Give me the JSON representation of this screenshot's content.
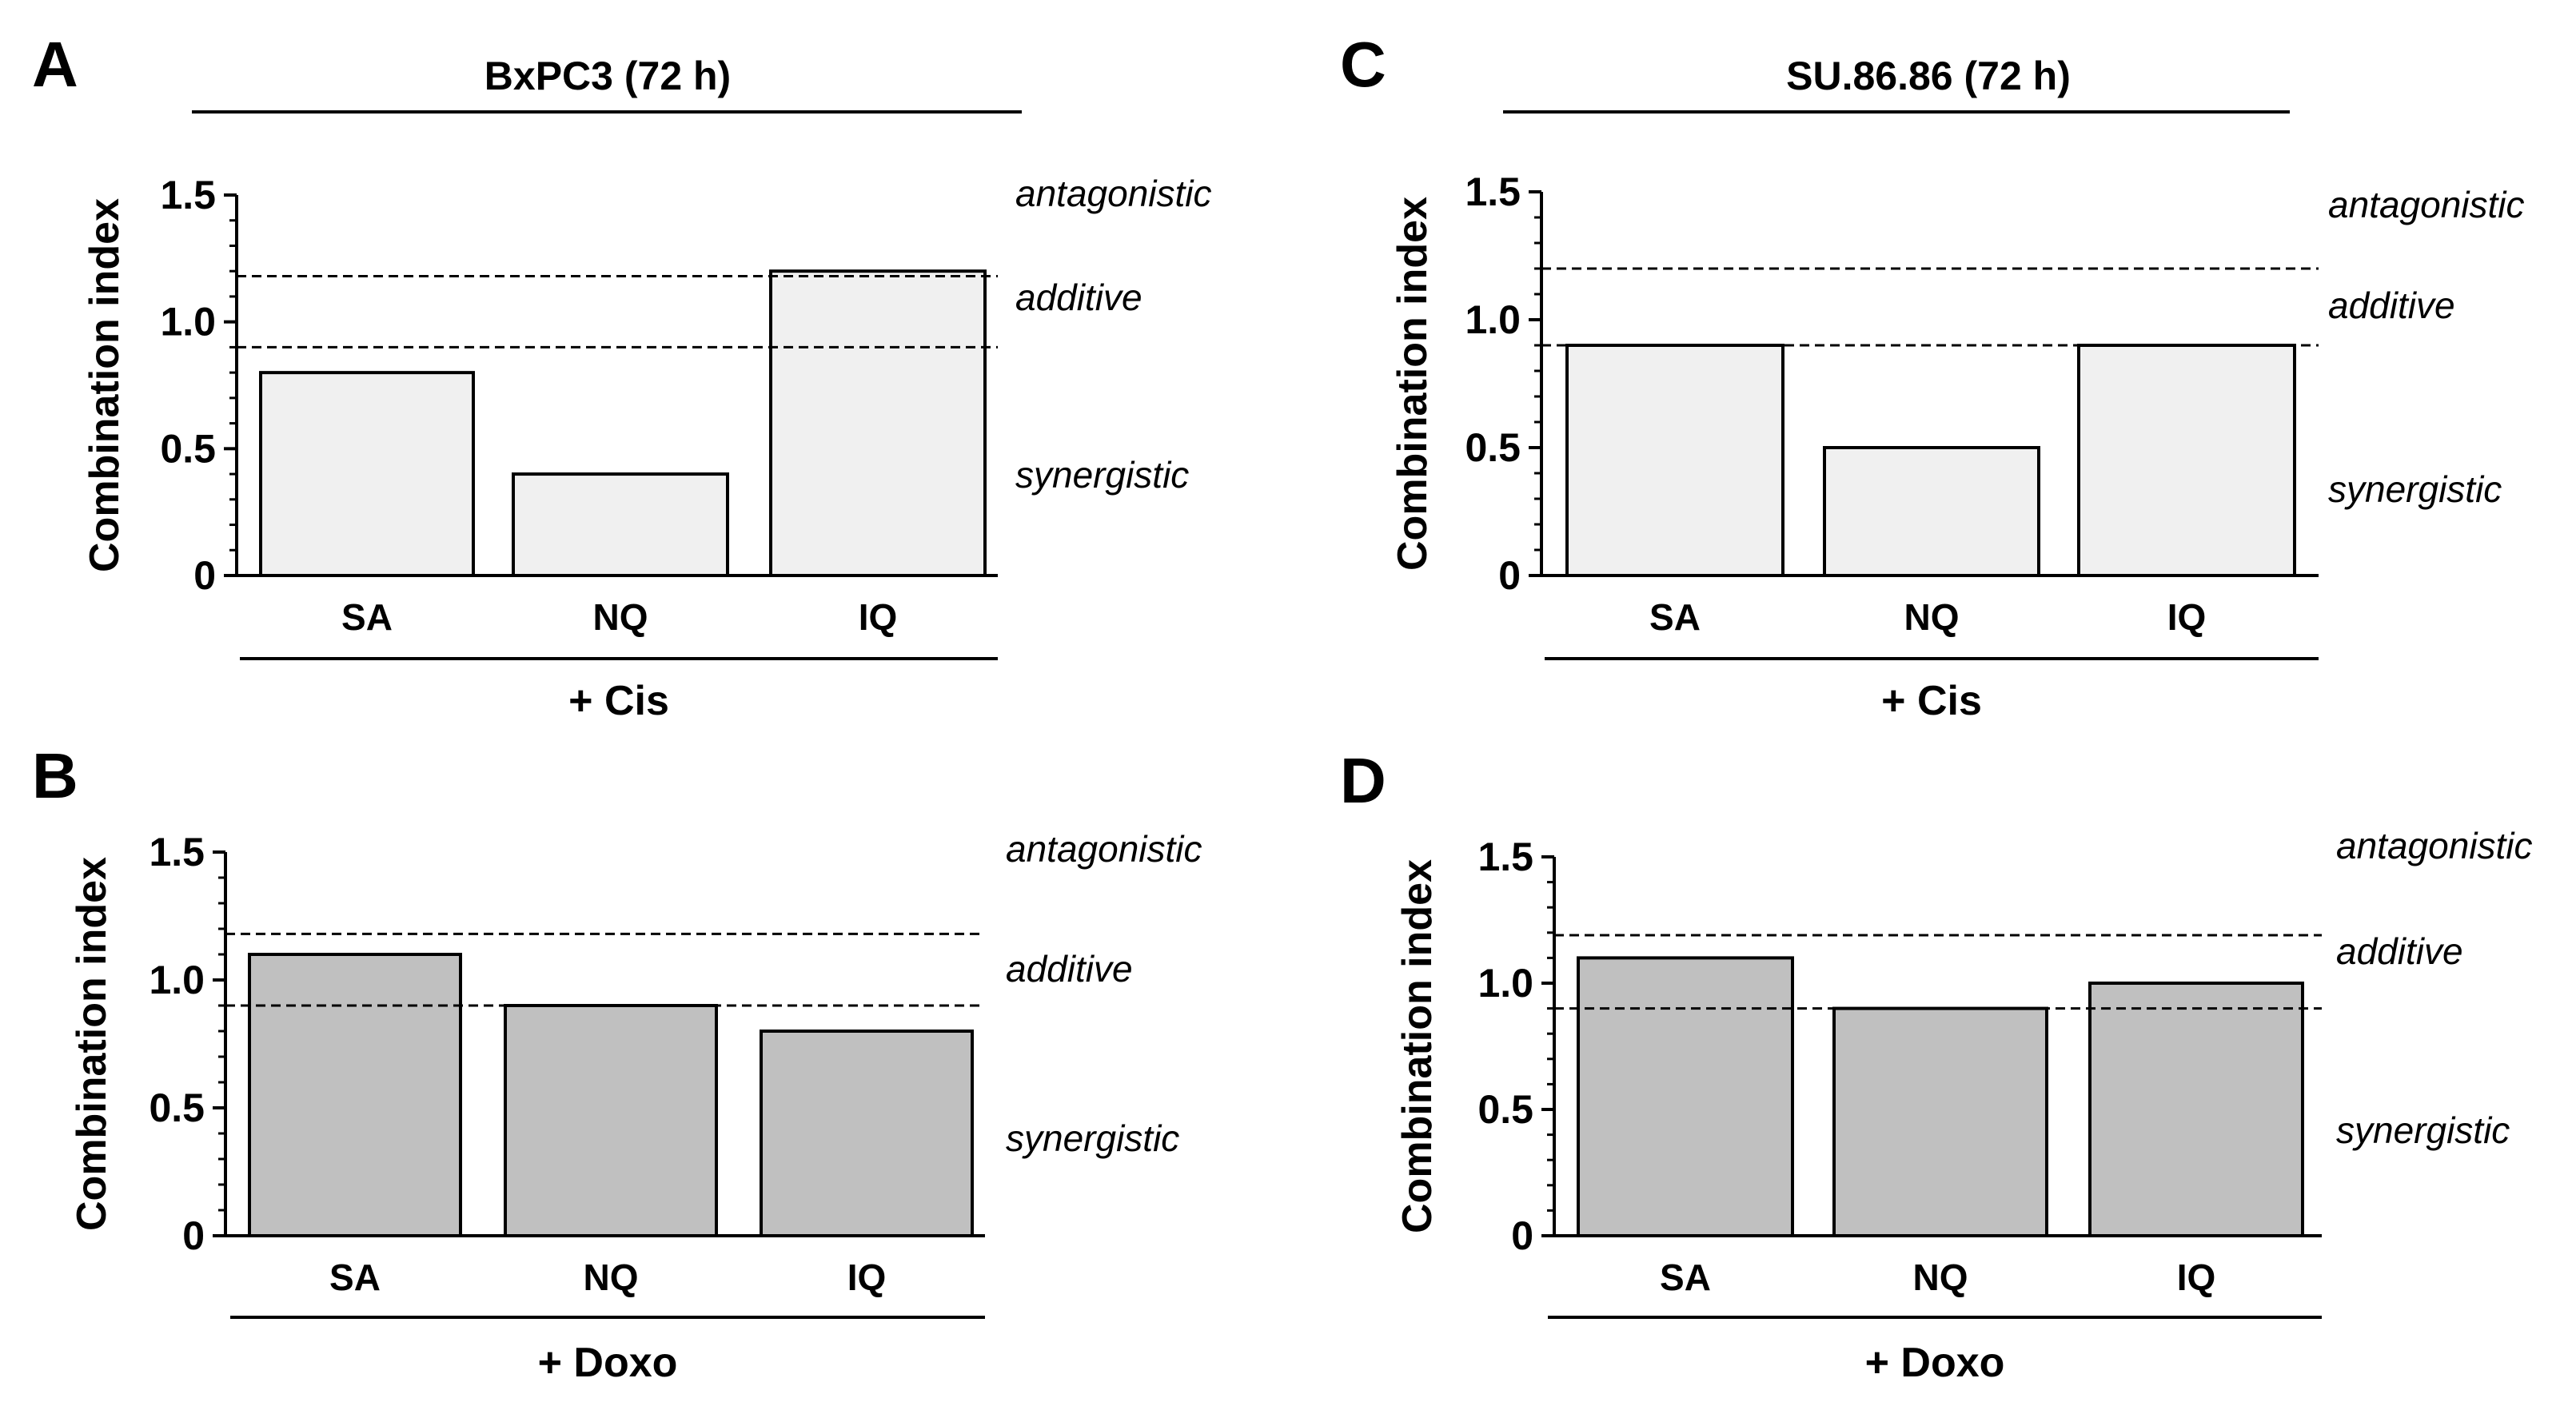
{
  "chart_data": [
    {
      "panel": "A",
      "type": "bar",
      "title": "BxPC3 (72 h)",
      "ylabel": "Combination index",
      "group_label": "+ Cis",
      "categories": [
        "SA",
        "NQ",
        "IQ"
      ],
      "values": [
        0.8,
        0.4,
        1.2
      ],
      "bar_color": "#f0f0f0",
      "ylim": [
        0,
        1.5
      ],
      "yticks": [
        "0",
        "0.5",
        "1.0",
        "1.5"
      ],
      "thresholds": [
        0.9,
        1.18
      ],
      "zones": [
        "antagonistic",
        "additive",
        "synergistic"
      ]
    },
    {
      "panel": "B",
      "type": "bar",
      "title": "",
      "ylabel": "Combination index",
      "group_label": "+ Doxo",
      "categories": [
        "SA",
        "NQ",
        "IQ"
      ],
      "values": [
        1.1,
        0.9,
        0.8
      ],
      "bar_color": "#c0c0c0",
      "ylim": [
        0,
        1.5
      ],
      "yticks": [
        "0",
        "0.5",
        "1.0",
        "1.5"
      ],
      "thresholds": [
        0.9,
        1.18
      ],
      "zones": [
        "antagonistic",
        "additive",
        "synergistic"
      ]
    },
    {
      "panel": "C",
      "type": "bar",
      "title": "SU.86.86 (72 h)",
      "ylabel": "Combination index",
      "group_label": "+ Cis",
      "categories": [
        "SA",
        "NQ",
        "IQ"
      ],
      "values": [
        0.9,
        0.5,
        0.9
      ],
      "bar_color": "#f0f0f0",
      "ylim": [
        0,
        1.5
      ],
      "yticks": [
        "0",
        "0.5",
        "1.0",
        "1.5"
      ],
      "thresholds": [
        0.9,
        1.2
      ],
      "zones": [
        "antagonistic",
        "additive",
        "synergistic"
      ]
    },
    {
      "panel": "D",
      "type": "bar",
      "title": "",
      "ylabel": "Combination index",
      "group_label": "+ Doxo",
      "categories": [
        "SA",
        "NQ",
        "IQ"
      ],
      "values": [
        1.1,
        0.9,
        1.0
      ],
      "bar_color": "#c0c0c0",
      "ylim": [
        0,
        1.5
      ],
      "yticks": [
        "0",
        "0.5",
        "1.0",
        "1.5"
      ],
      "thresholds": [
        0.9,
        1.19
      ],
      "zones": [
        "antagonistic",
        "additive",
        "synergistic"
      ]
    }
  ]
}
